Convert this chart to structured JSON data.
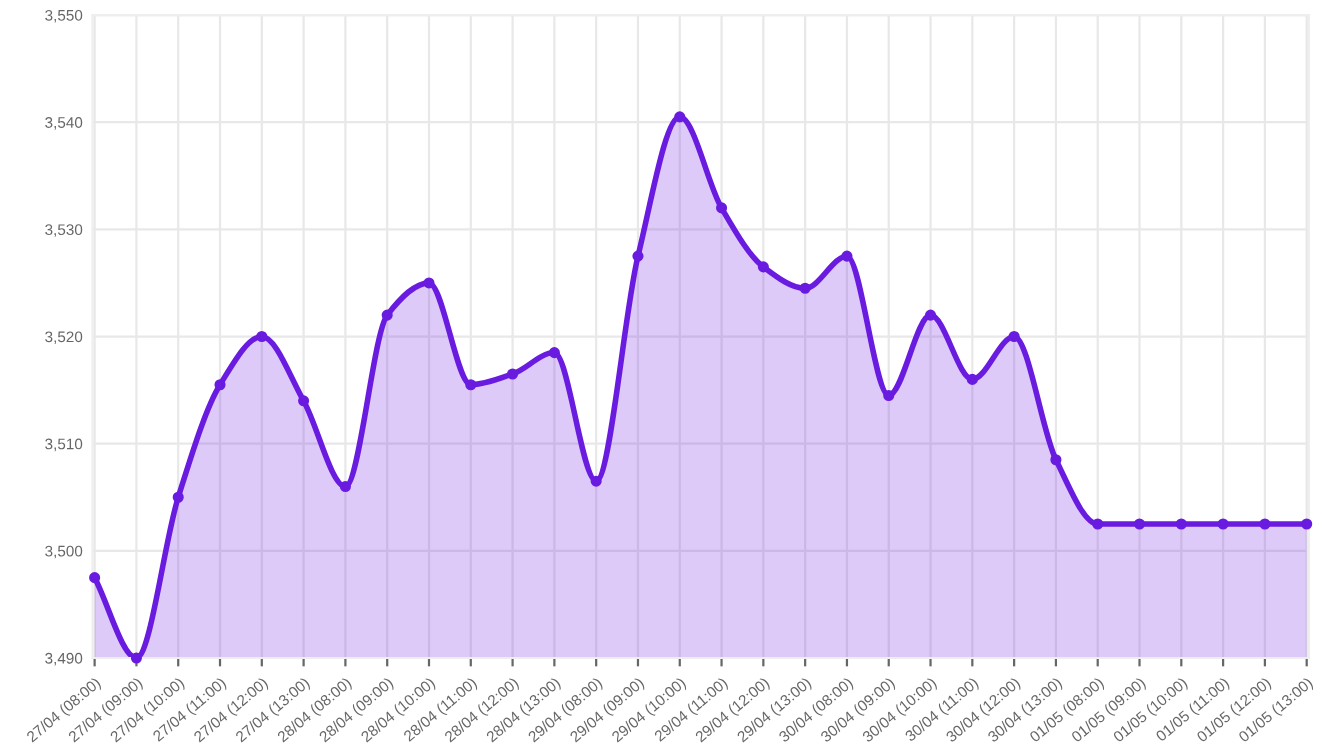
{
  "chart_data": {
    "type": "area",
    "categories": [
      "27/04 (08:00)",
      "27/04 (09:00)",
      "27/04 (10:00)",
      "27/04 (11:00)",
      "27/04 (12:00)",
      "27/04 (13:00)",
      "28/04 (08:00)",
      "28/04 (09:00)",
      "28/04 (10:00)",
      "28/04 (11:00)",
      "28/04 (12:00)",
      "28/04 (13:00)",
      "29/04 (08:00)",
      "29/04 (09:00)",
      "29/04 (10:00)",
      "29/04 (11:00)",
      "29/04 (12:00)",
      "29/04 (13:00)",
      "30/04 (08:00)",
      "30/04 (09:00)",
      "30/04 (10:00)",
      "30/04 (11:00)",
      "30/04 (12:00)",
      "30/04 (13:00)",
      "01/05 (08:00)",
      "01/05 (09:00)",
      "01/05 (10:00)",
      "01/05 (11:00)",
      "01/05 (12:00)",
      "01/05 (13:00)"
    ],
    "series": [
      {
        "color": "#6a1be0",
        "values": [
          3497.5,
          3490,
          3505,
          3515.5,
          3520,
          3514,
          3506,
          3522,
          3525,
          3515.5,
          3516.5,
          3518.5,
          3506.5,
          3527.5,
          3540.5,
          3532,
          3526.5,
          3524.5,
          3527.5,
          3514.5,
          3522,
          3516,
          3520,
          3508.5,
          3502.5,
          3502.5,
          3502.5,
          3502.5,
          3502.5,
          3502.5
        ]
      }
    ],
    "ylim": [
      3490,
      3550
    ],
    "yticks": [
      {
        "value": 3490,
        "label": "3,490"
      },
      {
        "value": 3500,
        "label": "3,500"
      },
      {
        "value": 3510,
        "label": "3,510"
      },
      {
        "value": 3520,
        "label": "3,520"
      },
      {
        "value": 3530,
        "label": "3,530"
      },
      {
        "value": 3540,
        "label": "3,540"
      },
      {
        "value": 3550,
        "label": "3,550"
      }
    ],
    "grid": true,
    "marker": "circle",
    "line_style": "solid"
  }
}
